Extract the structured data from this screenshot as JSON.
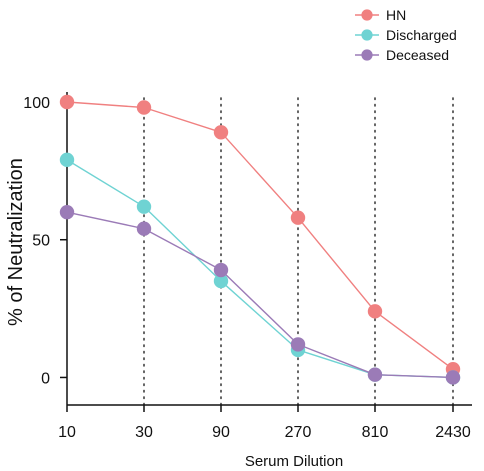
{
  "chart_data": {
    "type": "line",
    "title": "",
    "xlabel": "Serum Dilution",
    "ylabel": "% of Neutralization",
    "x_scale": "categorical",
    "categories": [
      "10",
      "30",
      "90",
      "270",
      "810",
      "2430"
    ],
    "ylim": [
      -10,
      100
    ],
    "yticks": [
      0,
      50,
      100
    ],
    "yticklabels": [
      "0",
      "50",
      "100"
    ],
    "grid": "vertical dotted lines at x categories 30 to 2430",
    "legend_position": "top-right",
    "series": [
      {
        "name": "HN",
        "color": "#f08080",
        "values": [
          100,
          98,
          89,
          58,
          24,
          3
        ]
      },
      {
        "name": "Discharged",
        "color": "#6fd3d3",
        "values": [
          79,
          62,
          35,
          10,
          1,
          0
        ]
      },
      {
        "name": "Deceased",
        "color": "#9b7bb7",
        "values": [
          60,
          54,
          39,
          12,
          1,
          0
        ]
      }
    ]
  }
}
